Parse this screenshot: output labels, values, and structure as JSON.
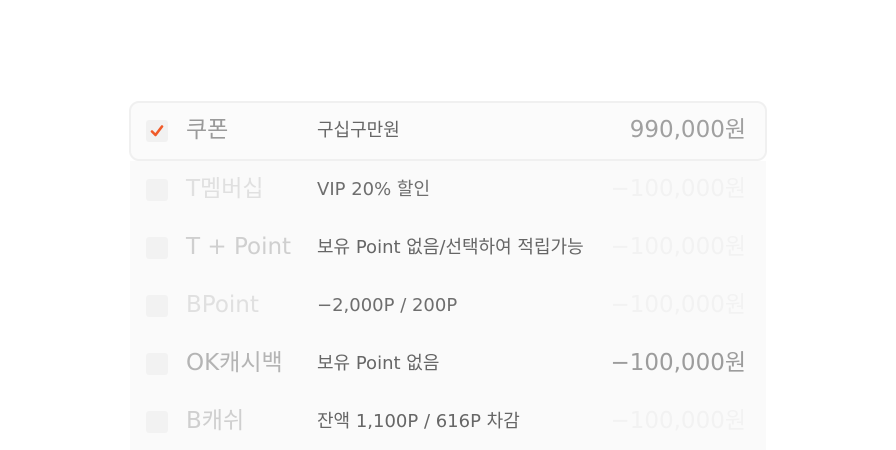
{
  "accent_color": "#f05a28",
  "rows": [
    {
      "name": "쿠폰",
      "desc": "구십구만원",
      "amount": "990,000원",
      "checked": true
    },
    {
      "name": "T멤버십",
      "desc": "VIP 20% 할인",
      "amount": "−100,000원",
      "checked": false
    },
    {
      "name": "T + Point",
      "desc": "보유 Point 없음/선택하여 적립가능",
      "amount": "−100,000원",
      "checked": false
    },
    {
      "name": "BPoint",
      "desc": "−2,000P / 200P",
      "amount": "−100,000원",
      "checked": false
    },
    {
      "name": "OK캐시백",
      "desc": "보유 Point 없음",
      "amount": "−100,000원",
      "checked": false
    },
    {
      "name": "B캐쉬",
      "desc": "잔액 1,100P / 616P 차감",
      "amount": "−100,000원",
      "checked": false
    }
  ]
}
